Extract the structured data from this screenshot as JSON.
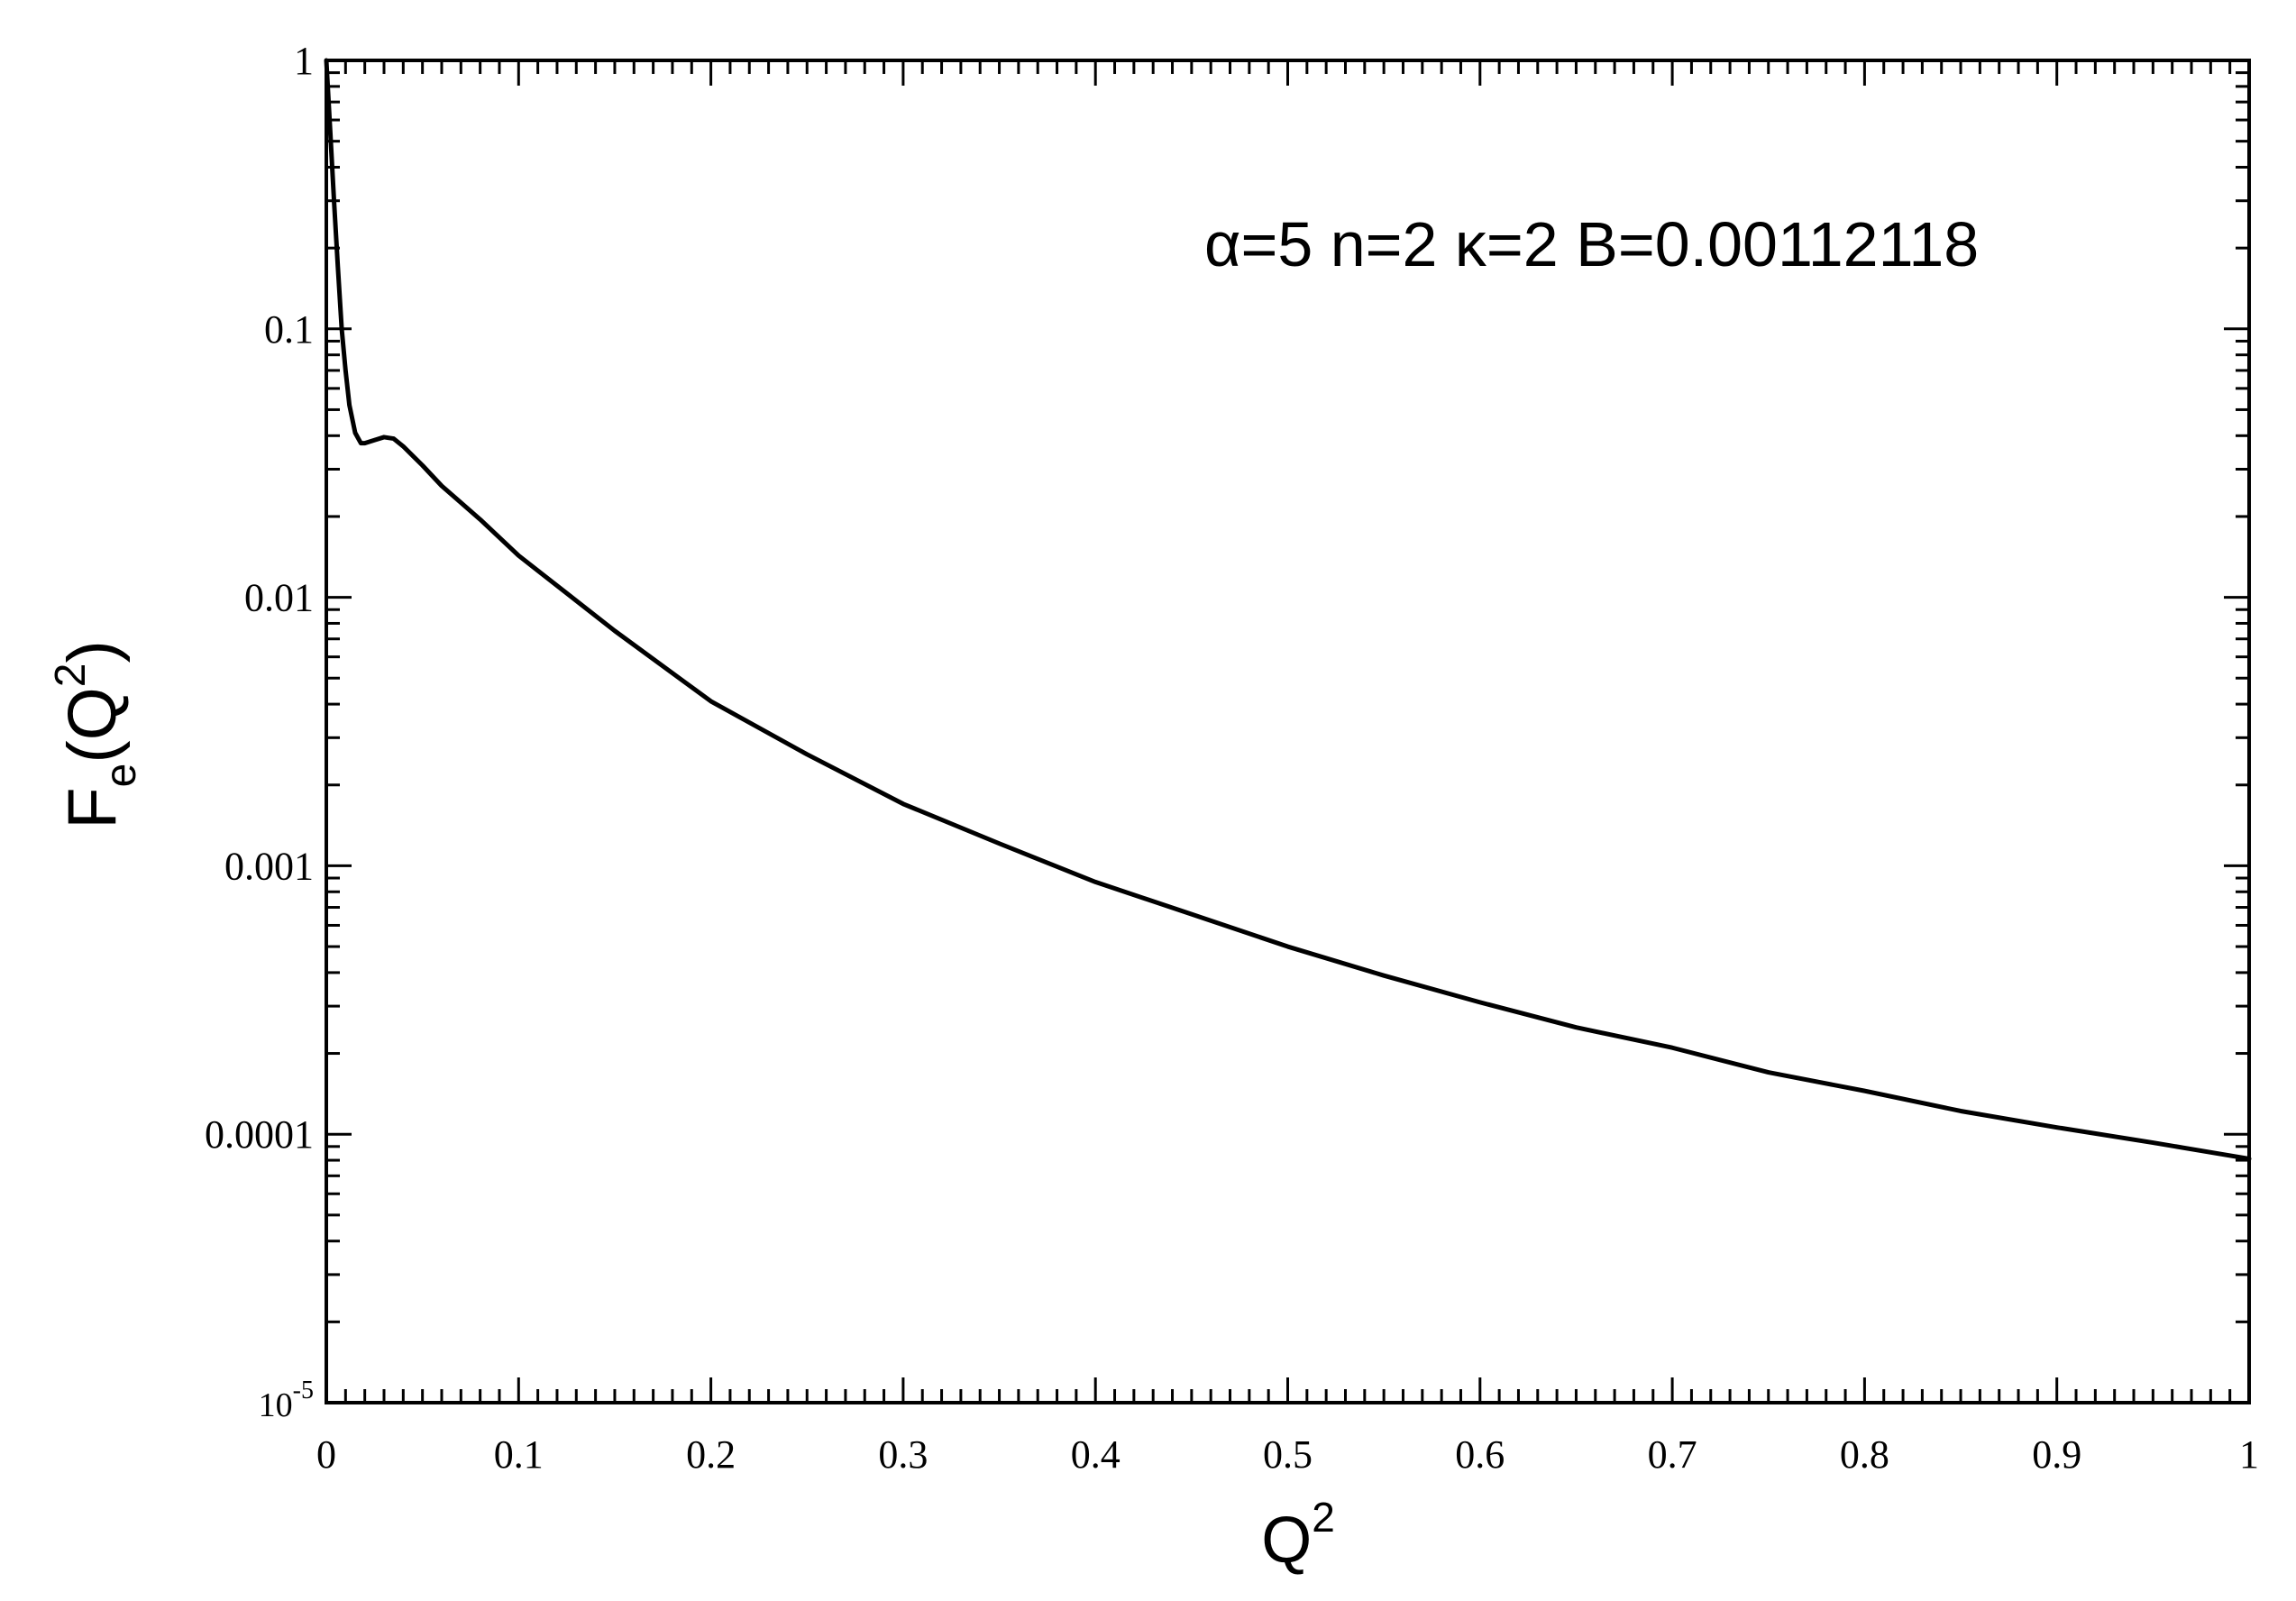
{
  "chart_data": {
    "type": "line",
    "title": "",
    "xlabel": {
      "base": "Q",
      "sup": "2"
    },
    "ylabel": {
      "base": "F",
      "sub": "e",
      "open": "(Q",
      "sup": "2",
      "close": ")"
    },
    "annotation": "α=5 n=2 κ=2 B=0.00112118",
    "xlim": [
      0,
      1
    ],
    "ylim": [
      1e-05,
      1
    ],
    "yscale": "log",
    "grid": false,
    "x_ticks": [
      {
        "value": 0,
        "label": "0"
      },
      {
        "value": 0.1,
        "label": "0.1"
      },
      {
        "value": 0.2,
        "label": "0.2"
      },
      {
        "value": 0.3,
        "label": "0.3"
      },
      {
        "value": 0.4,
        "label": "0.4"
      },
      {
        "value": 0.5,
        "label": "0.5"
      },
      {
        "value": 0.6,
        "label": "0.6"
      },
      {
        "value": 0.7,
        "label": "0.7"
      },
      {
        "value": 0.8,
        "label": "0.8"
      },
      {
        "value": 0.9,
        "label": "0.9"
      },
      {
        "value": 1,
        "label": "1"
      }
    ],
    "y_ticks": [
      {
        "value": 1,
        "label": "1"
      },
      {
        "value": 0.1,
        "label": "0.1"
      },
      {
        "value": 0.01,
        "label": "0.01"
      },
      {
        "value": 0.001,
        "label": "0.001"
      },
      {
        "value": 0.0001,
        "label": "0.0001"
      },
      {
        "value": 1e-05,
        "label_base": "10",
        "label_sup": "-5"
      }
    ],
    "series": [
      {
        "color": "#000000",
        "x": [
          0,
          0.002,
          0.004,
          0.006,
          0.008,
          0.01,
          0.012,
          0.015,
          0.018,
          0.02,
          0.025,
          0.03,
          0.035,
          0.04,
          0.05,
          0.06,
          0.08,
          0.1,
          0.15,
          0.2,
          0.25,
          0.3,
          0.35,
          0.4,
          0.45,
          0.5,
          0.55,
          0.6,
          0.65,
          0.7,
          0.75,
          0.8,
          0.85,
          0.9,
          0.95,
          1.0
        ],
        "y": [
          1.0,
          0.55,
          0.3,
          0.17,
          0.1,
          0.07,
          0.052,
          0.041,
          0.0375,
          0.0375,
          0.0385,
          0.0395,
          0.039,
          0.0365,
          0.031,
          0.026,
          0.0195,
          0.0143,
          0.0075,
          0.0041,
          0.0026,
          0.0017,
          0.00121,
          0.00087,
          0.00066,
          0.0005,
          0.00039,
          0.00031,
          0.00025,
          0.00021,
          0.00017,
          0.000145,
          0.000122,
          0.000106,
          9.3e-05,
          8.1e-05
        ]
      }
    ]
  }
}
